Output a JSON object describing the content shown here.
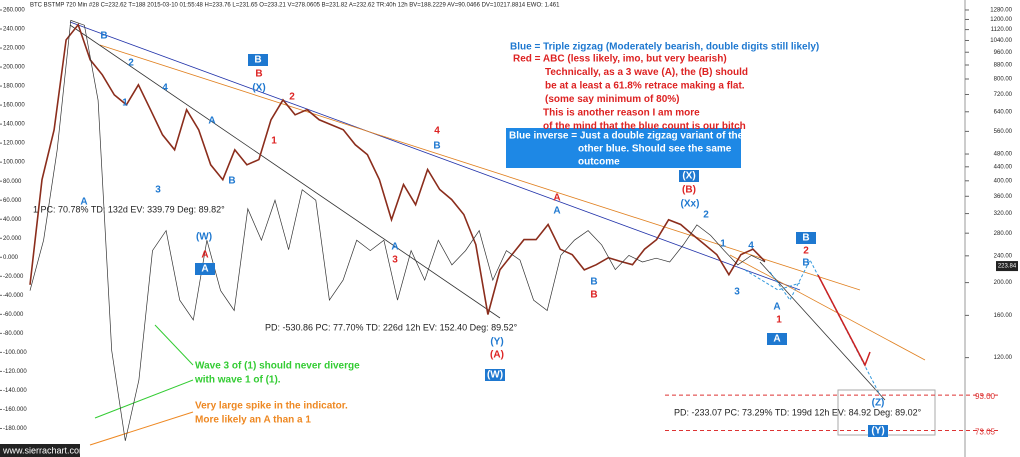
{
  "chart_data": {
    "type": "line",
    "log_scale": true,
    "header": "BTC BSTMP 720 Min  #28  C=232.62  T=188  2015-03-10 01:55:48  H=233.76  L=231.65  O=233.21  V=278.0605  B=231.82  A=232.62  TR:40h 12h  BV=188.2229  AV=90.0466  DV=10217.8814  EWO: 1.461",
    "series": [
      {
        "name": "BTC price",
        "color": "#8b2d1c",
        "values": [
          197,
          403,
          566,
          1044,
          1157,
          912,
          823,
          718,
          671,
          769,
          649,
          547,
          494,
          649,
          566,
          446,
          403,
          494,
          446,
          462,
          606,
          694,
          627,
          649,
          606,
          586,
          566,
          511,
          478,
          403,
          307,
          390,
          340,
          432,
          377,
          352,
          318,
          259,
          161,
          218,
          242,
          268,
          268,
          297,
          251,
          242,
          218,
          226,
          237,
          231,
          226,
          251,
          268,
          307,
          297,
          277,
          259,
          242,
          211,
          242,
          251,
          231
        ]
      },
      {
        "name": "Indicator",
        "color": "#333333",
        "axis": "y2",
        "values": [
          -35,
          18,
          113,
          249,
          244,
          165,
          -98,
          -193,
          -129,
          7,
          28,
          -45,
          -66,
          18,
          -35,
          -56,
          51,
          18,
          60,
          8,
          71,
          60,
          -45,
          -24,
          18,
          7,
          18,
          -45,
          7,
          -24,
          18,
          -8,
          7,
          28,
          -24,
          7,
          -3,
          -45,
          -56,
          2,
          18,
          28,
          13,
          -13,
          2,
          -5,
          -1,
          -5,
          13,
          34,
          23,
          7,
          -8,
          2,
          -5
        ]
      }
    ],
    "ylim": [
      61,
      1370
    ],
    "yticks": [
      {
        "value": 1280,
        "label": "1280.00"
      },
      {
        "value": 1200,
        "label": "1200.00"
      },
      {
        "value": 1120,
        "label": "1120.00"
      },
      {
        "value": 1040,
        "label": "1040.00"
      },
      {
        "value": 960,
        "label": "960.00"
      },
      {
        "value": 880,
        "label": "880.00"
      },
      {
        "value": 800,
        "label": "800.00"
      },
      {
        "value": 720,
        "label": "720.00"
      },
      {
        "value": 640,
        "label": "640.00"
      },
      {
        "value": 560,
        "label": "560.00"
      },
      {
        "value": 480,
        "label": "480.00"
      },
      {
        "value": 440,
        "label": "440.00"
      },
      {
        "value": 400,
        "label": "400.00"
      },
      {
        "value": 360,
        "label": "360.00"
      },
      {
        "value": 320,
        "label": "320.00"
      },
      {
        "value": 280,
        "label": "280.00"
      },
      {
        "value": 240,
        "label": "240.00"
      },
      {
        "value": 200,
        "label": "200.00"
      },
      {
        "value": 160,
        "label": "160.00"
      },
      {
        "value": 120,
        "label": "120.00"
      }
    ],
    "y2lim": [
      -210,
      270.5
    ],
    "y2ticks": [
      {
        "value": 260,
        "label": "260.000"
      },
      {
        "value": 240,
        "label": "240.000"
      },
      {
        "value": 220,
        "label": "220.000"
      },
      {
        "value": 200,
        "label": "200.000"
      },
      {
        "value": 180,
        "label": "180.000"
      },
      {
        "value": 160,
        "label": "160.000"
      },
      {
        "value": 140,
        "label": "140.000"
      },
      {
        "value": 120,
        "label": "120.000"
      },
      {
        "value": 100,
        "label": "100.000"
      },
      {
        "value": 80,
        "label": "80.000"
      },
      {
        "value": 60,
        "label": "60.000"
      },
      {
        "value": 40,
        "label": "40.000"
      },
      {
        "value": 20,
        "label": "20.000"
      },
      {
        "value": 0,
        "label": "0.000"
      },
      {
        "value": -20,
        "label": "-20.000"
      },
      {
        "value": -40,
        "label": "-40.000"
      },
      {
        "value": -60,
        "label": "-60.000"
      },
      {
        "value": -80,
        "label": "-80.000"
      },
      {
        "value": -100,
        "label": "-100.000"
      },
      {
        "value": -120,
        "label": "-120.000"
      },
      {
        "value": -140,
        "label": "-140.000"
      },
      {
        "value": -160,
        "label": "-160.000"
      },
      {
        "value": -180,
        "label": "-180.000"
      }
    ],
    "last_price": 223.84,
    "levels": [
      {
        "value": 93,
        "label": "93.00"
      },
      73.05
    ],
    "readouts": [
      "1  PC: 70.78%  TD: 132d  EV: 339.79  Deg: 89.82°",
      "PD: -530.86  PC: 77.70%  TD: 226d 12h  EV: 152.40  Deg: 89.52°",
      "PD: -233.07  PC: 73.29%  TD: 199d 12h  EV: 84.92  Deg: 89.02°"
    ],
    "wave_labels": [
      "B",
      "2",
      "1",
      "4",
      "3",
      "A",
      "A",
      "B",
      "B",
      "B",
      "(X)",
      "2",
      "1",
      "4",
      "B",
      "3",
      "A",
      "(W)",
      "A",
      "A",
      "A",
      "A",
      "B",
      "B",
      "(X)",
      "(B)",
      "(Xx)",
      "2",
      "1",
      "4",
      "3",
      "B",
      "2",
      "B",
      "A",
      "1",
      "A",
      "(Y)",
      "(A)",
      "(W)",
      "(Z)",
      "(Y)"
    ],
    "notes": {
      "blue": "Blue = Triple zigzag (Moderately bearish, double digits still likely)",
      "red": [
        "Red = ABC (less likely, imo, but very bearish)",
        "Technically, as a 3 wave (A), the (B) should",
        "be at a least a 61.8% retrace making a flat.",
        "(some say minimum of 80%)",
        "This is another reason I am more",
        "of the mind that the blue count is our bitch"
      ],
      "inverse": [
        "Blue inverse = Just a double zigzag variant of the",
        "other blue. Should see the same",
        "outcome"
      ],
      "green": [
        "Wave 3 of (1) should never diverge",
        "with wave 1 of (1)."
      ],
      "orange": [
        "Very large spike in the indicator.",
        "More likely an A than a 1"
      ]
    },
    "watermark": "www.sierrachart.com"
  }
}
